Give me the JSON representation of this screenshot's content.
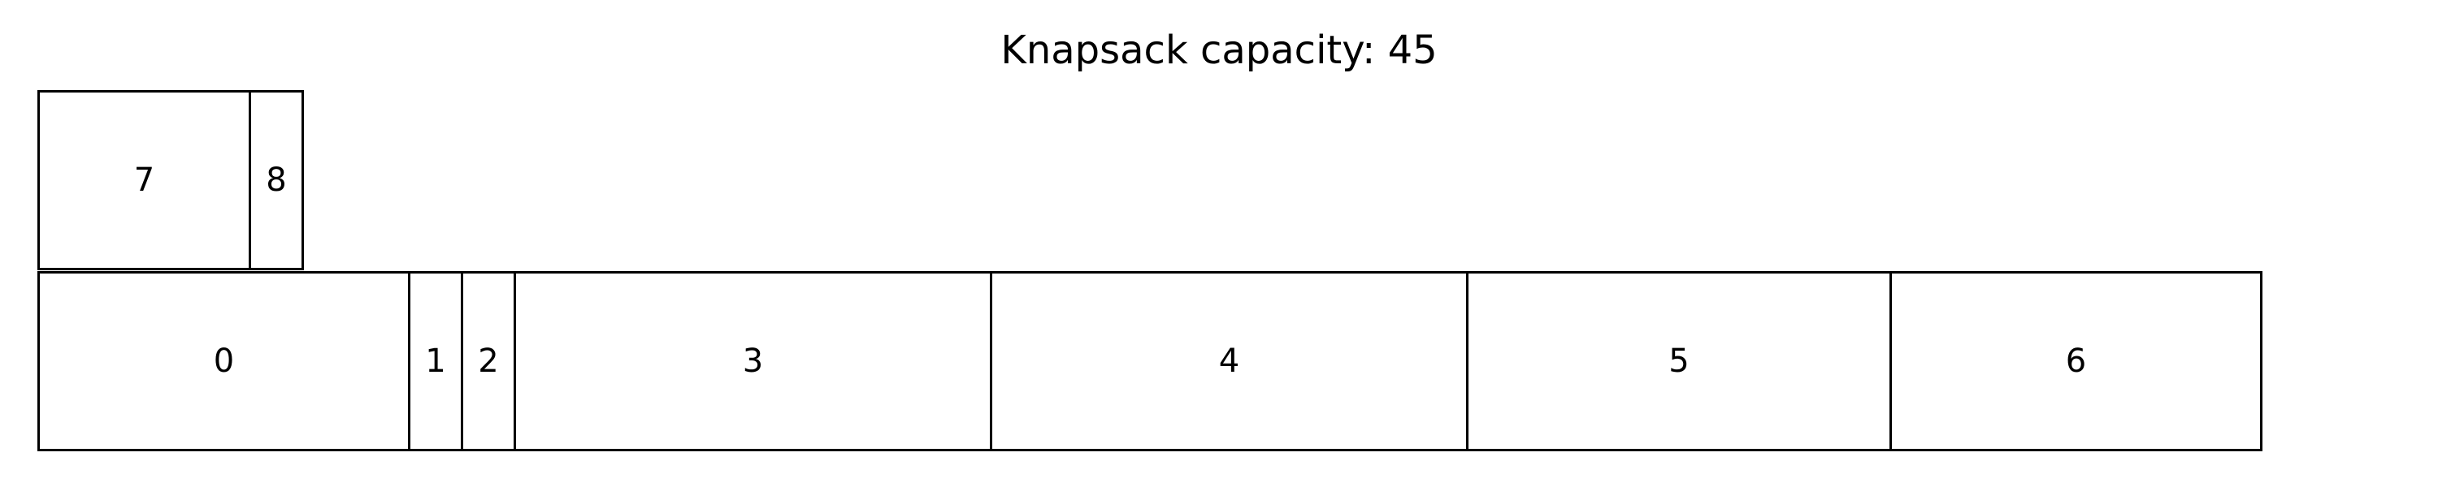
{
  "title": "Knapsack capacity: 45",
  "rows": {
    "bottom": [
      {
        "label": "0",
        "size": 7
      },
      {
        "label": "1",
        "size": 1
      },
      {
        "label": "2",
        "size": 1
      },
      {
        "label": "3",
        "size": 9
      },
      {
        "label": "4",
        "size": 9
      },
      {
        "label": "5",
        "size": 8
      },
      {
        "label": "6",
        "size": 7
      }
    ],
    "top": [
      {
        "label": "7",
        "size": 4
      },
      {
        "label": "8",
        "size": 1
      }
    ]
  }
}
